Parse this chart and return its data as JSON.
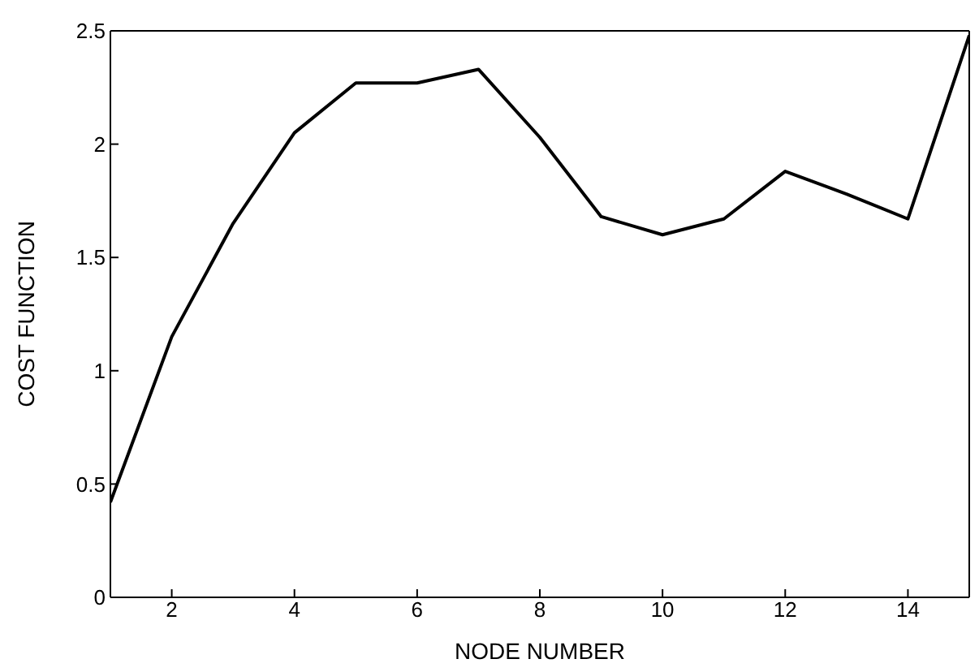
{
  "chart_data": {
    "type": "line",
    "xlabel": "NODE NUMBER",
    "ylabel": "COST FUNCTION",
    "x": [
      1,
      2,
      3,
      4,
      5,
      6,
      7,
      8,
      9,
      10,
      11,
      12,
      13,
      14,
      15
    ],
    "series": [
      {
        "color": "#000000",
        "values": [
          0.42,
          1.15,
          1.65,
          2.05,
          2.27,
          2.27,
          2.33,
          2.03,
          1.68,
          1.6,
          1.67,
          1.88,
          1.78,
          1.67,
          2.48
        ]
      }
    ],
    "xlim": [
      1,
      15
    ],
    "xticks": [
      2,
      4,
      6,
      8,
      10,
      12,
      14
    ],
    "ylim": [
      0,
      2.5
    ],
    "yticks": [
      0,
      0.5,
      1,
      1.5,
      2,
      2.5
    ],
    "grid": false,
    "marker": "none",
    "line_style": "solid"
  }
}
